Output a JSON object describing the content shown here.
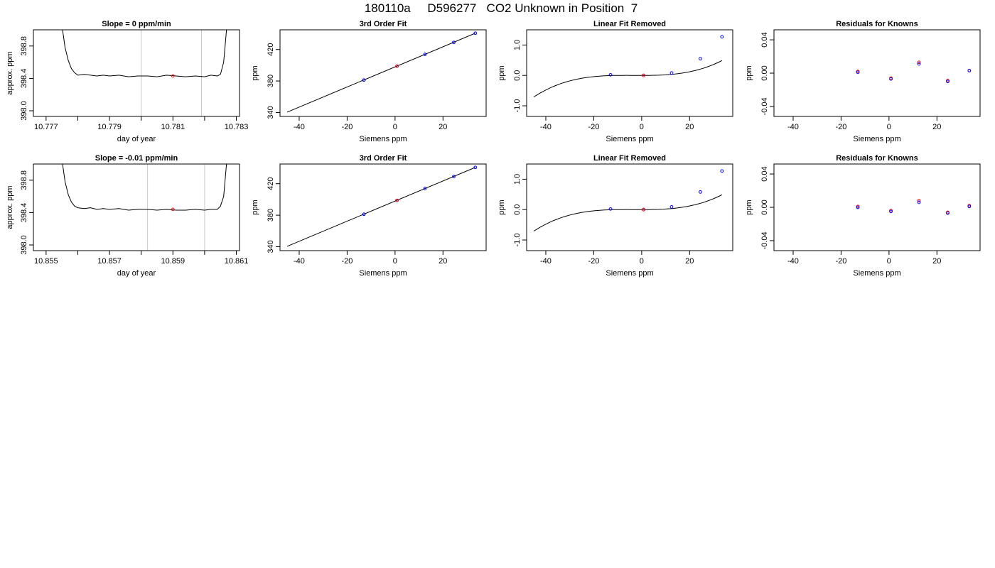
{
  "figure": {
    "title": "180110a     D596277   CO2 Unknown in Position  7"
  },
  "chart_data": [
    {
      "type": "line",
      "title": "Slope =  0  ppm/min",
      "xlabel": "day of year",
      "ylabel": "approx. ppm",
      "xlim": [
        10.7766,
        10.7831
      ],
      "ylim": [
        397.93,
        399.0
      ],
      "xticks": [
        10.777,
        10.779,
        10.781,
        10.783
      ],
      "xticks_minor": [
        10.778,
        10.78,
        10.782
      ],
      "xtick_labels": [
        "10.777",
        "10.779",
        "10.781",
        "10.783"
      ],
      "yticks": [
        398.0,
        398.4,
        398.8
      ],
      "ytick_labels": [
        "398.0",
        "398.4",
        "398.8"
      ],
      "vlines": [
        10.78,
        10.7819
      ],
      "colors": {
        "trace": "#000000",
        "vline": "#c8c8c8",
        "marker": "#ff0000"
      },
      "series": [
        {
          "x": [
            10.7775,
            10.7776,
            10.7777,
            10.7778,
            10.7779,
            10.778,
            10.7782,
            10.7784,
            10.7786,
            10.7788,
            10.779,
            10.7793,
            10.7796,
            10.7799,
            10.7802,
            10.7805,
            10.7808,
            10.7811,
            10.7814,
            10.7817,
            10.782,
            10.7822,
            10.7824,
            10.7825,
            10.7826,
            10.7827
          ],
          "y": [
            399.05,
            398.78,
            398.62,
            398.52,
            398.47,
            398.44,
            398.45,
            398.44,
            398.43,
            398.44,
            398.43,
            398.44,
            398.42,
            398.43,
            398.43,
            398.42,
            398.44,
            398.43,
            398.42,
            398.43,
            398.42,
            398.44,
            398.43,
            398.45,
            398.6,
            399.05
          ]
        }
      ],
      "markers": [
        {
          "x": 10.781,
          "y": 398.43
        }
      ]
    },
    {
      "type": "scatter",
      "title": "3rd Order Fit",
      "xlabel": "Siemens ppm",
      "ylabel": "ppm",
      "xlim": [
        -48,
        38
      ],
      "ylim": [
        335,
        445
      ],
      "xticks": [
        -40,
        -20,
        0,
        20
      ],
      "xtick_labels": [
        "-40",
        "-20",
        "0",
        "20"
      ],
      "yticks": [
        340,
        380,
        420
      ],
      "ytick_labels": [
        "340",
        "380",
        "420"
      ],
      "fit_line": {
        "x": [
          -45,
          33.5
        ],
        "y": [
          340.5,
          440.7
        ]
      },
      "colors": {
        "fit": "#000000",
        "known": "#0000ff",
        "unknown": "#ff0000"
      },
      "known_points": [
        {
          "x": -13,
          "y": 381.2
        },
        {
          "x": 0.8,
          "y": 398.8
        },
        {
          "x": 12.5,
          "y": 413.8
        },
        {
          "x": 24.5,
          "y": 429.0
        },
        {
          "x": 33.5,
          "y": 440.7
        }
      ],
      "unknown_points": [
        {
          "x": 0.8,
          "y": 398.8
        }
      ]
    },
    {
      "type": "scatter",
      "title": "Linear Fit Removed",
      "xlabel": "Siemens ppm",
      "ylabel": "ppm",
      "xlim": [
        -48,
        38
      ],
      "ylim": [
        -1.35,
        1.5
      ],
      "xticks": [
        -40,
        -20,
        0,
        20
      ],
      "xtick_labels": [
        "-40",
        "-20",
        "0",
        "20"
      ],
      "yticks": [
        -1.0,
        0.0,
        1.0
      ],
      "ytick_labels": [
        "-1.0",
        "0.0",
        "1.0"
      ],
      "curve": {
        "form": "cubic",
        "coefficients": [
          1e-05,
          0.0001,
          0.0,
          3e-05
        ],
        "x_range": [
          -45,
          33.5
        ]
      },
      "colors": {
        "fit": "#000000",
        "known": "#0000ff",
        "unknown": "#ff0000"
      },
      "known_points": [
        {
          "x": -13,
          "y": 0.02
        },
        {
          "x": 0.8,
          "y": 0.0
        },
        {
          "x": 12.5,
          "y": 0.08
        },
        {
          "x": 24.5,
          "y": 0.55
        },
        {
          "x": 33.5,
          "y": 1.27
        }
      ],
      "unknown_points": [
        {
          "x": 0.8,
          "y": 0.0
        }
      ]
    },
    {
      "type": "scatter",
      "title": "Residuals for Knowns",
      "xlabel": "Siemens ppm",
      "ylabel": "ppm",
      "xlim": [
        -48,
        38
      ],
      "ylim": [
        -0.052,
        0.052
      ],
      "xticks": [
        -40,
        -20,
        0,
        20
      ],
      "xtick_labels": [
        "-40",
        "-20",
        "0",
        "20"
      ],
      "yticks": [
        -0.04,
        0.0,
        0.04
      ],
      "ytick_labels": [
        "-0.04",
        "0.00",
        "0.04"
      ],
      "colors": {
        "red": "#ff0000",
        "blue": "#0000ff"
      },
      "red_points": [
        {
          "x": -13,
          "y": 0.002
        },
        {
          "x": 0.8,
          "y": -0.006
        },
        {
          "x": 12.5,
          "y": 0.013
        },
        {
          "x": 24.5,
          "y": -0.009
        },
        {
          "x": 33.5,
          "y": 0.003
        }
      ],
      "blue_points": [
        {
          "x": -13,
          "y": 0.001
        },
        {
          "x": 0.8,
          "y": -0.007
        },
        {
          "x": 12.5,
          "y": 0.011
        },
        {
          "x": 24.5,
          "y": -0.01
        },
        {
          "x": 33.5,
          "y": 0.003
        }
      ]
    },
    {
      "type": "line",
      "title": "Slope =  -0.01  ppm/min",
      "xlabel": "day of year",
      "ylabel": "approx. ppm",
      "xlim": [
        10.8546,
        10.8611
      ],
      "ylim": [
        397.93,
        399.0
      ],
      "xticks": [
        10.855,
        10.857,
        10.859,
        10.861
      ],
      "xticks_minor": [
        10.856,
        10.858,
        10.86
      ],
      "xtick_labels": [
        "10.855",
        "10.857",
        "10.859",
        "10.861"
      ],
      "yticks": [
        398.0,
        398.4,
        398.8
      ],
      "ytick_labels": [
        "398.0",
        "398.4",
        "398.8"
      ],
      "vlines": [
        10.8582,
        10.86
      ],
      "colors": {
        "trace": "#000000",
        "vline": "#c8c8c8",
        "marker": "#ff0000"
      },
      "series": [
        {
          "x": [
            10.8555,
            10.8556,
            10.8557,
            10.8558,
            10.8559,
            10.856,
            10.8562,
            10.8564,
            10.8566,
            10.8568,
            10.857,
            10.8573,
            10.8576,
            10.8579,
            10.8582,
            10.8585,
            10.8588,
            10.8591,
            10.8594,
            10.8597,
            10.86,
            10.8602,
            10.8604,
            10.8605,
            10.8606,
            10.8607
          ],
          "y": [
            399.05,
            398.78,
            398.62,
            398.53,
            398.48,
            398.46,
            398.45,
            398.46,
            398.44,
            398.45,
            398.44,
            398.45,
            398.43,
            398.44,
            398.44,
            398.43,
            398.44,
            398.43,
            398.43,
            398.44,
            398.43,
            398.44,
            398.44,
            398.48,
            398.6,
            399.05
          ]
        }
      ],
      "markers": [
        {
          "x": 10.859,
          "y": 398.44
        }
      ]
    },
    {
      "type": "scatter",
      "title": "3rd Order Fit",
      "xlabel": "Siemens ppm",
      "ylabel": "ppm",
      "xlim": [
        -48,
        38
      ],
      "ylim": [
        335,
        445
      ],
      "xticks": [
        -40,
        -20,
        0,
        20
      ],
      "xtick_labels": [
        "-40",
        "-20",
        "0",
        "20"
      ],
      "yticks": [
        340,
        380,
        420
      ],
      "ytick_labels": [
        "340",
        "380",
        "420"
      ],
      "fit_line": {
        "x": [
          -45,
          33.5
        ],
        "y": [
          340.5,
          440.7
        ]
      },
      "colors": {
        "fit": "#000000",
        "known": "#0000ff",
        "unknown": "#ff0000"
      },
      "known_points": [
        {
          "x": -13,
          "y": 381.2
        },
        {
          "x": 0.8,
          "y": 398.8
        },
        {
          "x": 12.5,
          "y": 413.8
        },
        {
          "x": 24.5,
          "y": 429.0
        },
        {
          "x": 33.5,
          "y": 440.7
        }
      ],
      "unknown_points": [
        {
          "x": 0.8,
          "y": 398.8
        }
      ]
    },
    {
      "type": "scatter",
      "title": "Linear Fit Removed",
      "xlabel": "Siemens ppm",
      "ylabel": "ppm",
      "xlim": [
        -48,
        38
      ],
      "ylim": [
        -1.35,
        1.5
      ],
      "xticks": [
        -40,
        -20,
        0,
        20
      ],
      "xtick_labels": [
        "-40",
        "-20",
        "0",
        "20"
      ],
      "yticks": [
        -1.0,
        0.0,
        1.0
      ],
      "ytick_labels": [
        "-1.0",
        "0.0",
        "1.0"
      ],
      "curve": {
        "form": "cubic",
        "coefficients": [
          1e-05,
          0.0001,
          0.0,
          3e-05
        ],
        "x_range": [
          -45,
          33.5
        ]
      },
      "colors": {
        "fit": "#000000",
        "known": "#0000ff",
        "unknown": "#ff0000"
      },
      "known_points": [
        {
          "x": -13,
          "y": 0.02
        },
        {
          "x": 0.8,
          "y": 0.0
        },
        {
          "x": 12.5,
          "y": 0.09
        },
        {
          "x": 24.5,
          "y": 0.58
        },
        {
          "x": 33.5,
          "y": 1.27
        }
      ],
      "unknown_points": [
        {
          "x": 0.8,
          "y": 0.0
        }
      ]
    },
    {
      "type": "scatter",
      "title": "Residuals for Knowns",
      "xlabel": "Siemens ppm",
      "ylabel": "ppm",
      "xlim": [
        -48,
        38
      ],
      "ylim": [
        -0.052,
        0.052
      ],
      "xticks": [
        -40,
        -20,
        0,
        20
      ],
      "xtick_labels": [
        "-40",
        "-20",
        "0",
        "20"
      ],
      "yticks": [
        -0.04,
        0.0,
        0.04
      ],
      "ytick_labels": [
        "-0.04",
        "0.00",
        "0.04"
      ],
      "colors": {
        "red": "#ff0000",
        "blue": "#0000ff"
      },
      "red_points": [
        {
          "x": -13,
          "y": 0.001
        },
        {
          "x": 0.8,
          "y": -0.004
        },
        {
          "x": 12.5,
          "y": 0.008
        },
        {
          "x": 24.5,
          "y": -0.006
        },
        {
          "x": 33.5,
          "y": 0.002
        }
      ],
      "blue_points": [
        {
          "x": -13,
          "y": 0.0
        },
        {
          "x": 0.8,
          "y": -0.005
        },
        {
          "x": 12.5,
          "y": 0.006
        },
        {
          "x": 24.5,
          "y": -0.007
        },
        {
          "x": 33.5,
          "y": 0.001
        }
      ]
    }
  ]
}
